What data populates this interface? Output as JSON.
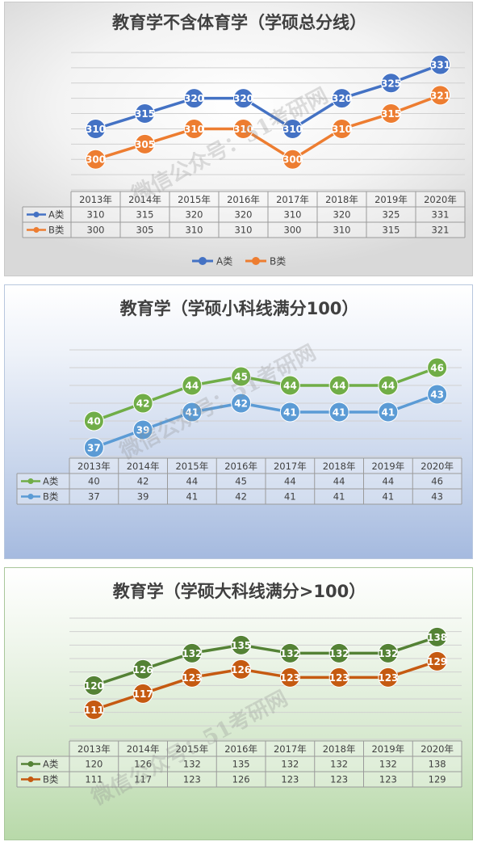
{
  "watermark_lines": [
    "微信公众号：51考研网"
  ],
  "legend_labels": [
    "A类",
    "B类"
  ],
  "chart_data": [
    {
      "type": "line",
      "title": "教育学不含体育学（学硕总分线）",
      "categories": [
        "2013年",
        "2014年",
        "2015年",
        "2016年",
        "2017年",
        "2018年",
        "2019年",
        "2020年"
      ],
      "series": [
        {
          "name": "A类",
          "values": [
            310,
            315,
            320,
            320,
            310,
            320,
            325,
            331
          ],
          "color": "#4472c4"
        },
        {
          "name": "B类",
          "values": [
            300,
            305,
            310,
            310,
            300,
            310,
            315,
            321
          ],
          "color": "#ed7d31"
        }
      ],
      "ylim": [
        290,
        335
      ],
      "grid": true,
      "data_table": true,
      "legend": "bottom"
    },
    {
      "type": "line",
      "title": "教育学（学硕小科线满分100）",
      "categories": [
        "2013年",
        "2014年",
        "2015年",
        "2016年",
        "2017年",
        "2018年",
        "2019年",
        "2020年"
      ],
      "series": [
        {
          "name": "A类",
          "values": [
            40,
            42,
            44,
            45,
            44,
            44,
            44,
            46
          ],
          "color": "#70ad47"
        },
        {
          "name": "B类",
          "values": [
            37,
            39,
            41,
            42,
            41,
            41,
            41,
            43
          ],
          "color": "#5b9bd5"
        }
      ],
      "ylim": [
        36,
        48
      ],
      "grid": true,
      "data_table": true,
      "legend": "table"
    },
    {
      "type": "line",
      "title": "教育学（学硕大科线满分>100）",
      "categories": [
        "2013年",
        "2014年",
        "2015年",
        "2016年",
        "2017年",
        "2018年",
        "2019年",
        "2020年"
      ],
      "series": [
        {
          "name": "A类",
          "values": [
            120,
            126,
            132,
            135,
            132,
            132,
            132,
            138
          ],
          "color": "#548235"
        },
        {
          "name": "B类",
          "values": [
            111,
            117,
            123,
            126,
            123,
            123,
            123,
            129
          ],
          "color": "#c55a11"
        }
      ],
      "ylim": [
        100,
        145
      ],
      "grid": true,
      "data_table": true,
      "legend": "table"
    }
  ]
}
